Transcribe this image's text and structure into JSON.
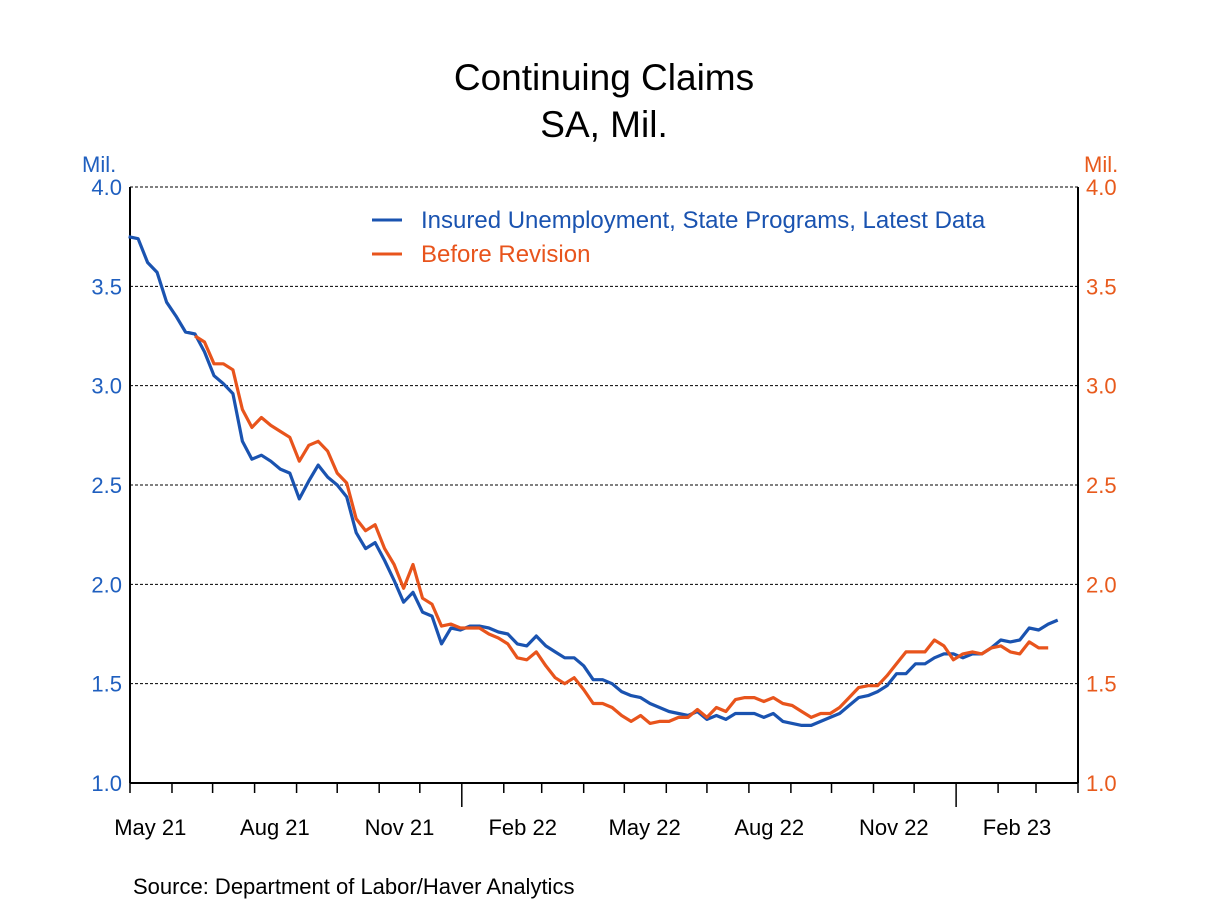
{
  "chart_data": {
    "type": "line",
    "title": "Continuing Claims",
    "subtitle": "SA, Mil.",
    "ylabel_left": "Mil.",
    "ylabel_right": "Mil.",
    "ylim": [
      1.0,
      4.0
    ],
    "yticks": [
      "1.0",
      "1.5",
      "2.0",
      "2.5",
      "3.0",
      "3.5",
      "4.0"
    ],
    "ytick_values": [
      1.0,
      1.5,
      2.0,
      2.5,
      3.0,
      3.5,
      4.0
    ],
    "xlim": [
      "2021-05-01",
      "2023-04-01"
    ],
    "xtick_labels": [
      {
        "label": "May 21",
        "date": "2021-05-16"
      },
      {
        "label": "Aug 21",
        "date": "2021-08-16"
      },
      {
        "label": "Nov 21",
        "date": "2021-11-16"
      },
      {
        "label": "Feb 22",
        "date": "2022-02-15"
      },
      {
        "label": "May 22",
        "date": "2022-05-16"
      },
      {
        "label": "Aug 22",
        "date": "2022-08-16"
      },
      {
        "label": "Nov 22",
        "date": "2022-11-16"
      },
      {
        "label": "Feb 23",
        "date": "2023-02-15"
      }
    ],
    "grid": true,
    "legend_position": "top-right",
    "source": "Source:  Department of Labor/Haver Analytics",
    "colors": {
      "left_axis": "#1f5fbf",
      "right_axis": "#e85a1c"
    },
    "x": [
      "2021-04-24",
      "2021-05-01",
      "2021-05-08",
      "2021-05-15",
      "2021-05-22",
      "2021-05-29",
      "2021-06-05",
      "2021-06-12",
      "2021-06-19",
      "2021-06-26",
      "2021-07-03",
      "2021-07-10",
      "2021-07-17",
      "2021-07-24",
      "2021-07-31",
      "2021-08-07",
      "2021-08-14",
      "2021-08-21",
      "2021-08-28",
      "2021-09-04",
      "2021-09-11",
      "2021-09-18",
      "2021-09-25",
      "2021-10-02",
      "2021-10-09",
      "2021-10-16",
      "2021-10-23",
      "2021-10-30",
      "2021-11-06",
      "2021-11-13",
      "2021-11-20",
      "2021-11-27",
      "2021-12-04",
      "2021-12-11",
      "2021-12-18",
      "2021-12-25",
      "2022-01-01",
      "2022-01-08",
      "2022-01-15",
      "2022-01-22",
      "2022-01-29",
      "2022-02-05",
      "2022-02-12",
      "2022-02-19",
      "2022-02-26",
      "2022-03-05",
      "2022-03-12",
      "2022-03-19",
      "2022-03-26",
      "2022-04-02",
      "2022-04-09",
      "2022-04-16",
      "2022-04-23",
      "2022-04-30",
      "2022-05-07",
      "2022-05-14",
      "2022-05-21",
      "2022-05-28",
      "2022-06-04",
      "2022-06-11",
      "2022-06-18",
      "2022-06-25",
      "2022-07-02",
      "2022-07-09",
      "2022-07-16",
      "2022-07-23",
      "2022-07-30",
      "2022-08-06",
      "2022-08-13",
      "2022-08-20",
      "2022-08-27",
      "2022-09-03",
      "2022-09-10",
      "2022-09-17",
      "2022-09-24",
      "2022-10-01",
      "2022-10-08",
      "2022-10-15",
      "2022-10-22",
      "2022-10-29",
      "2022-11-05",
      "2022-11-12",
      "2022-11-19",
      "2022-11-26",
      "2022-12-03",
      "2022-12-10",
      "2022-12-17",
      "2022-12-24",
      "2022-12-31",
      "2023-01-07",
      "2023-01-14",
      "2023-01-21",
      "2023-01-28",
      "2023-02-04",
      "2023-02-11",
      "2023-02-18",
      "2023-02-25",
      "2023-03-04",
      "2023-03-11"
    ],
    "series": [
      {
        "name": "Insured Unemployment, State Programs, Latest Data",
        "color": "#1a53b0",
        "values": [
          3.75,
          3.74,
          3.62,
          3.57,
          3.42,
          3.35,
          3.27,
          3.26,
          3.17,
          3.05,
          3.01,
          2.96,
          2.72,
          2.63,
          2.65,
          2.62,
          2.58,
          2.56,
          2.43,
          2.52,
          2.6,
          2.54,
          2.5,
          2.44,
          2.26,
          2.18,
          2.21,
          2.12,
          2.02,
          1.91,
          1.96,
          1.86,
          1.84,
          1.7,
          1.78,
          1.77,
          1.79,
          1.79,
          1.78,
          1.76,
          1.75,
          1.7,
          1.69,
          1.74,
          1.69,
          1.66,
          1.63,
          1.63,
          1.59,
          1.52,
          1.52,
          1.5,
          1.46,
          1.44,
          1.43,
          1.4,
          1.38,
          1.36,
          1.35,
          1.34,
          1.36,
          1.32,
          1.34,
          1.32,
          1.35,
          1.35,
          1.35,
          1.33,
          1.35,
          1.31,
          1.3,
          1.29,
          1.29,
          1.31,
          1.33,
          1.35,
          1.39,
          1.43,
          1.44,
          1.46,
          1.49,
          1.55,
          1.55,
          1.6,
          1.6,
          1.63,
          1.65,
          1.65,
          1.63,
          1.65,
          1.65,
          1.68,
          1.72,
          1.71,
          1.72,
          1.78,
          1.77,
          1.8,
          1.82
        ]
      },
      {
        "name": "Before Revision",
        "color": "#e8541c",
        "values": [
          null,
          null,
          null,
          null,
          null,
          null,
          null,
          3.25,
          3.22,
          3.11,
          3.11,
          3.08,
          2.88,
          2.79,
          2.84,
          2.8,
          2.77,
          2.74,
          2.62,
          2.7,
          2.72,
          2.67,
          2.56,
          2.51,
          2.33,
          2.27,
          2.3,
          2.18,
          2.1,
          1.98,
          2.1,
          1.93,
          1.9,
          1.79,
          1.8,
          1.78,
          1.78,
          1.78,
          1.75,
          1.73,
          1.7,
          1.63,
          1.62,
          1.66,
          1.59,
          1.53,
          1.5,
          1.53,
          1.47,
          1.4,
          1.4,
          1.38,
          1.34,
          1.31,
          1.34,
          1.3,
          1.31,
          1.31,
          1.33,
          1.33,
          1.37,
          1.33,
          1.38,
          1.36,
          1.42,
          1.43,
          1.43,
          1.41,
          1.43,
          1.4,
          1.39,
          1.36,
          1.33,
          1.35,
          1.35,
          1.38,
          1.43,
          1.48,
          1.49,
          1.49,
          1.54,
          1.6,
          1.66,
          1.66,
          1.66,
          1.72,
          1.69,
          1.62,
          1.65,
          1.66,
          1.65,
          1.68,
          1.69,
          1.66,
          1.65,
          1.71,
          1.68,
          1.68,
          null
        ]
      }
    ]
  }
}
